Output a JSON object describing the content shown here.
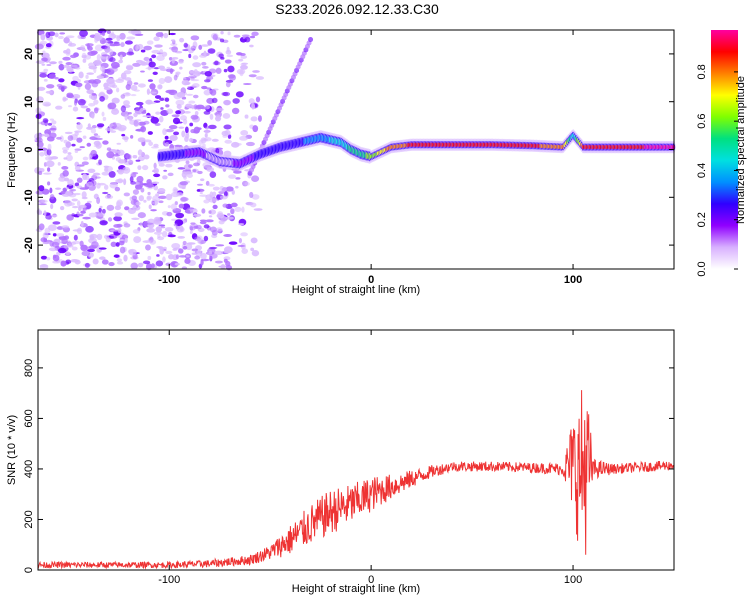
{
  "title": "S233.2026.092.12.33.C30",
  "chart_data": [
    {
      "type": "heatmap",
      "name": "spectrogram",
      "xlabel": "Height of straight line (km)",
      "ylabel": "Frequency (Hz)",
      "xlim": [
        -165,
        150
      ],
      "ylim": [
        -25,
        25
      ],
      "xticks": [
        -100,
        0,
        100
      ],
      "yticks": [
        -20,
        -10,
        0,
        10,
        20
      ],
      "colorbar": {
        "label": "Normalized spectral amplitude",
        "range": [
          0.0,
          0.97
        ],
        "ticks": [
          0.0,
          0.2,
          0.4,
          0.6,
          0.8
        ],
        "colors": [
          "#ffffff",
          "#d8b0ff",
          "#9000ff",
          "#3000ff",
          "#0090ff",
          "#00e0e0",
          "#00e080",
          "#80ff00",
          "#ffff00",
          "#ff8000",
          "#ff0000",
          "#ff00a0"
        ]
      },
      "ridge": {
        "x": [
          -105,
          -95,
          -85,
          -75,
          -65,
          -55,
          -45,
          -35,
          -25,
          -15,
          -10,
          -5,
          0,
          5,
          10,
          20,
          40,
          60,
          80,
          95,
          100,
          105,
          120,
          150
        ],
        "freq": [
          -1.5,
          -1.0,
          -0.5,
          -2.5,
          -3.0,
          -1.0,
          0.5,
          1.5,
          2.5,
          1.5,
          0.0,
          -1.0,
          -1.5,
          -0.5,
          0.5,
          1.0,
          1.0,
          1.0,
          0.8,
          0.5,
          3.0,
          0.5,
          0.5,
          0.5
        ],
        "amplitude": [
          0.25,
          0.25,
          0.15,
          0.1,
          0.15,
          0.25,
          0.3,
          0.3,
          0.35,
          0.45,
          0.5,
          0.55,
          0.6,
          0.7,
          0.8,
          0.85,
          0.85,
          0.85,
          0.85,
          0.8,
          0.4,
          0.85,
          0.9,
          0.95
        ]
      },
      "noise_region_x": [
        -165,
        -70
      ]
    },
    {
      "type": "line",
      "name": "snr",
      "xlabel": "Height of straight line (km)",
      "ylabel": "SNR (10 * v/v)",
      "xlim": [
        -165,
        150
      ],
      "ylim": [
        0,
        950
      ],
      "xticks": [
        -100,
        0,
        100
      ],
      "yticks": [
        0,
        200,
        400,
        600,
        800
      ],
      "color": "#ee3333",
      "envelope": {
        "x": [
          -165,
          -100,
          -80,
          -60,
          -50,
          -40,
          -30,
          -20,
          -10,
          0,
          10,
          20,
          30,
          40,
          60,
          80,
          95,
          100,
          103,
          106,
          110,
          120,
          150
        ],
        "mean": [
          20,
          20,
          25,
          40,
          70,
          120,
          180,
          230,
          260,
          300,
          330,
          360,
          390,
          410,
          410,
          405,
          400,
          420,
          380,
          420,
          400,
          400,
          415
        ],
        "spread": [
          12,
          12,
          15,
          20,
          30,
          60,
          80,
          90,
          80,
          70,
          50,
          35,
          25,
          20,
          20,
          20,
          25,
          200,
          300,
          380,
          40,
          20,
          20
        ]
      }
    }
  ]
}
